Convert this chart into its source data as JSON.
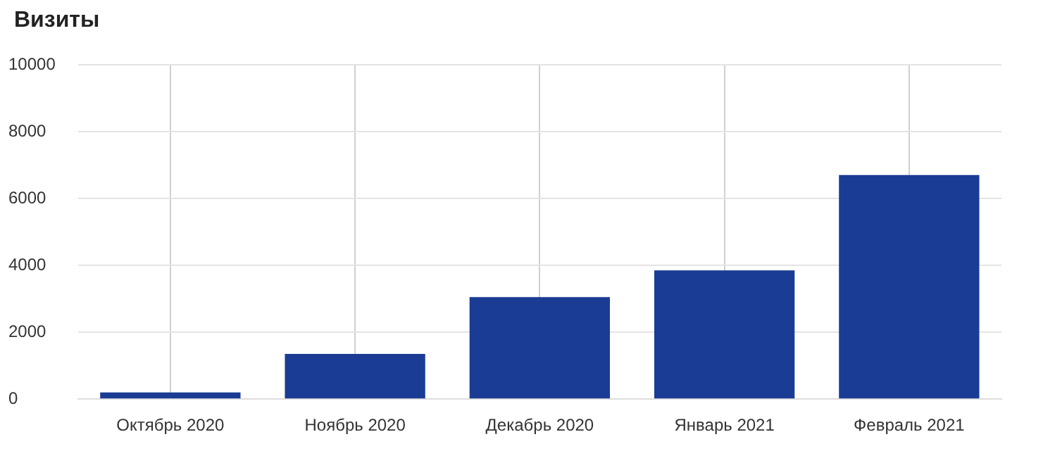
{
  "chart_data": {
    "type": "bar",
    "title": "Визиты",
    "categories": [
      "Октябрь 2020",
      "Ноябрь 2020",
      "Декабрь 2020",
      "Январь 2021",
      "Февраль 2021"
    ],
    "values": [
      200,
      1350,
      3050,
      3850,
      6700
    ],
    "color": "#1a3c94",
    "ylim": [
      0,
      10000
    ],
    "yticks": [
      0,
      2000,
      4000,
      6000,
      8000,
      10000
    ],
    "grid": true,
    "legend": false
  }
}
